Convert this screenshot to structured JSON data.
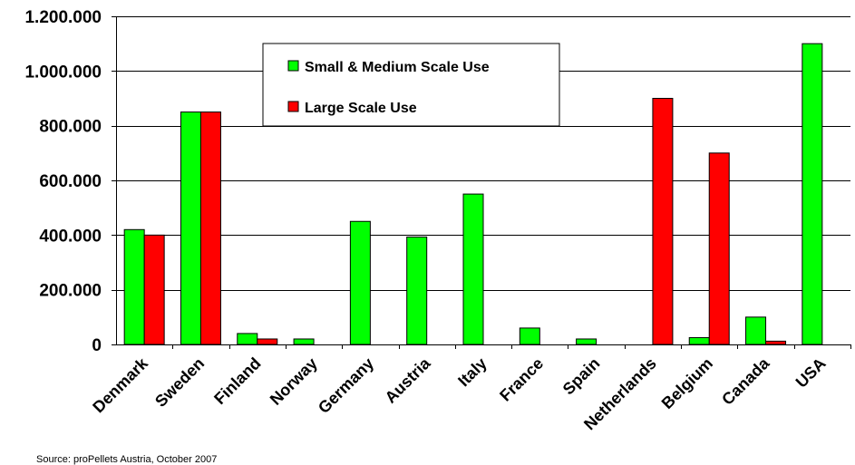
{
  "chart_data": {
    "type": "bar",
    "categories": [
      "Denmark",
      "Sweden",
      "Finland",
      "Norway",
      "Germany",
      "Austria",
      "Italy",
      "France",
      "Spain",
      "Netherlands",
      "Belgium",
      "Canada",
      "USA"
    ],
    "series": [
      {
        "name": "Small & Medium Scale Use",
        "color": "#00ff00",
        "values": [
          420000,
          850000,
          40000,
          20000,
          450000,
          393000,
          550000,
          60000,
          20000,
          0,
          25000,
          100000,
          1100000
        ]
      },
      {
        "name": "Large Scale Use",
        "color": "#ff0000",
        "values": [
          400000,
          850000,
          20000,
          0,
          0,
          0,
          0,
          0,
          0,
          900000,
          700000,
          12000,
          0
        ]
      }
    ],
    "ylim": [
      0,
      1200000
    ],
    "yticks": [
      0,
      200000,
      400000,
      600000,
      800000,
      1000000,
      1200000
    ],
    "ytick_labels": [
      "0",
      "200.000",
      "400.000",
      "600.000",
      "800.000",
      "1.000.000",
      "1.200.000"
    ],
    "grid": true,
    "legend_position": "top-center",
    "xlabel": "",
    "ylabel": "",
    "title": ""
  },
  "source_note": "Source: proPellets Austria, October 2007"
}
